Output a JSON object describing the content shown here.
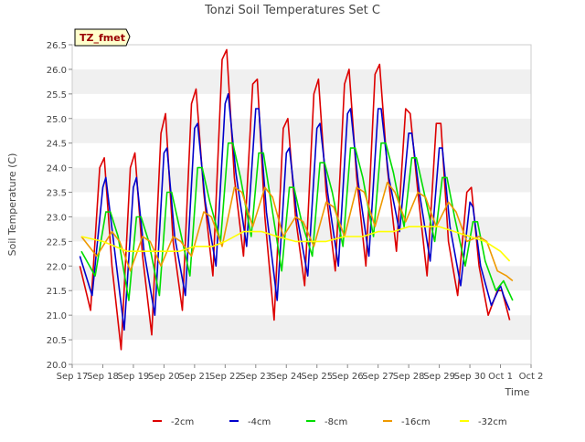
{
  "chart_data": {
    "type": "line",
    "title": "Tonzi Soil Temperatures Set C",
    "xlabel": "Time",
    "ylabel": "Soil Temperature (C)",
    "badge": "TZ_fmet",
    "ylim": [
      20.0,
      26.5
    ],
    "xlim": [
      0,
      15
    ],
    "grid": "alternating horizontal bands",
    "legend_position": "bottom-center",
    "y_ticks": [
      20.0,
      20.5,
      21.0,
      21.5,
      22.0,
      22.5,
      23.0,
      23.5,
      24.0,
      24.5,
      25.0,
      25.5,
      26.0,
      26.5
    ],
    "x_ticks": [
      {
        "x": 0,
        "label": "Sep 17"
      },
      {
        "x": 1,
        "label": "Sep 18"
      },
      {
        "x": 2,
        "label": "Sep 19"
      },
      {
        "x": 3,
        "label": "Sep 20"
      },
      {
        "x": 4,
        "label": "Sep 21"
      },
      {
        "x": 5,
        "label": "Sep 22"
      },
      {
        "x": 6,
        "label": "Sep 23"
      },
      {
        "x": 7,
        "label": "Sep 24"
      },
      {
        "x": 8,
        "label": "Sep 25"
      },
      {
        "x": 9,
        "label": "Sep 26"
      },
      {
        "x": 10,
        "label": "Sep 27"
      },
      {
        "x": 11,
        "label": "Sep 28"
      },
      {
        "x": 12,
        "label": "Sep 29"
      },
      {
        "x": 13,
        "label": "Sep 30"
      },
      {
        "x": 14,
        "label": "Oct 1"
      },
      {
        "x": 15,
        "label": "Oct 2"
      }
    ],
    "series": [
      {
        "name": "-2cm",
        "color": "#dd0000",
        "x": [
          0.25,
          0.6,
          0.9,
          1.05,
          1.3,
          1.6,
          1.9,
          2.05,
          2.3,
          2.6,
          2.9,
          3.05,
          3.3,
          3.6,
          3.9,
          4.05,
          4.3,
          4.6,
          4.9,
          5.05,
          5.3,
          5.6,
          5.9,
          6.05,
          6.3,
          6.6,
          6.9,
          7.05,
          7.3,
          7.6,
          7.9,
          8.05,
          8.3,
          8.6,
          8.9,
          9.05,
          9.3,
          9.6,
          9.9,
          10.05,
          10.3,
          10.6,
          10.9,
          11.05,
          11.3,
          11.6,
          11.9,
          12.05,
          12.3,
          12.6,
          12.9,
          13.05,
          13.3,
          13.6,
          13.9,
          14.05,
          14.3
        ],
        "y": [
          22.0,
          21.1,
          24.0,
          24.2,
          22.0,
          20.3,
          24.0,
          24.3,
          22.2,
          20.6,
          24.7,
          25.1,
          22.5,
          21.1,
          25.3,
          25.6,
          23.5,
          21.8,
          26.2,
          26.4,
          23.8,
          22.2,
          25.7,
          25.8,
          23.0,
          20.9,
          24.8,
          25.0,
          23.0,
          21.6,
          25.5,
          25.8,
          23.5,
          21.9,
          25.7,
          26.0,
          23.8,
          22.0,
          25.9,
          26.1,
          24.0,
          22.3,
          25.2,
          25.1,
          23.5,
          21.8,
          24.9,
          24.9,
          22.5,
          21.4,
          23.5,
          23.6,
          22.0,
          21.0,
          21.5,
          21.5,
          20.9
        ]
      },
      {
        "name": "-4cm",
        "color": "#0000cc",
        "x": [
          0.25,
          0.65,
          1.0,
          1.1,
          1.35,
          1.7,
          2.0,
          2.1,
          2.35,
          2.7,
          3.0,
          3.1,
          3.35,
          3.7,
          4.0,
          4.1,
          4.35,
          4.7,
          5.0,
          5.1,
          5.35,
          5.7,
          6.0,
          6.1,
          6.35,
          6.7,
          7.0,
          7.1,
          7.35,
          7.7,
          8.0,
          8.1,
          8.35,
          8.7,
          9.0,
          9.1,
          9.35,
          9.7,
          10.0,
          10.1,
          10.35,
          10.7,
          11.0,
          11.1,
          11.35,
          11.7,
          12.0,
          12.1,
          12.35,
          12.7,
          13.0,
          13.1,
          13.35,
          13.7,
          14.0,
          14.1,
          14.3
        ],
        "y": [
          22.2,
          21.4,
          23.6,
          23.8,
          22.5,
          20.7,
          23.6,
          23.8,
          22.3,
          21.0,
          24.3,
          24.4,
          22.6,
          21.4,
          24.8,
          24.9,
          23.3,
          22.0,
          25.3,
          25.5,
          23.9,
          22.4,
          25.2,
          25.2,
          23.1,
          21.3,
          24.3,
          24.4,
          23.0,
          21.8,
          24.8,
          24.9,
          23.5,
          22.0,
          25.1,
          25.2,
          23.7,
          22.2,
          25.2,
          25.2,
          23.8,
          22.7,
          24.7,
          24.7,
          23.5,
          22.1,
          24.4,
          24.4,
          22.8,
          21.6,
          23.3,
          23.2,
          22.0,
          21.2,
          21.6,
          21.4,
          21.1
        ]
      },
      {
        "name": "-8cm",
        "color": "#00dd00",
        "x": [
          0.3,
          0.75,
          1.1,
          1.25,
          1.5,
          1.85,
          2.1,
          2.25,
          2.5,
          2.85,
          3.1,
          3.25,
          3.5,
          3.85,
          4.1,
          4.25,
          4.5,
          4.85,
          5.1,
          5.25,
          5.5,
          5.85,
          6.1,
          6.25,
          6.5,
          6.85,
          7.1,
          7.25,
          7.5,
          7.85,
          8.1,
          8.25,
          8.5,
          8.85,
          9.1,
          9.25,
          9.5,
          9.85,
          10.1,
          10.25,
          10.5,
          10.85,
          11.1,
          11.25,
          11.5,
          11.85,
          12.1,
          12.25,
          12.5,
          12.85,
          13.1,
          13.25,
          13.5,
          13.85,
          14.1,
          14.4
        ],
        "y": [
          22.3,
          21.8,
          23.1,
          23.1,
          22.6,
          21.3,
          23.0,
          23.0,
          22.5,
          21.4,
          23.5,
          23.5,
          22.8,
          21.8,
          24.0,
          24.0,
          23.3,
          22.5,
          24.5,
          24.5,
          23.8,
          22.6,
          24.3,
          24.3,
          23.3,
          21.9,
          23.6,
          23.6,
          22.9,
          22.2,
          24.1,
          24.1,
          23.5,
          22.4,
          24.4,
          24.4,
          23.8,
          22.6,
          24.5,
          24.5,
          23.9,
          22.8,
          24.2,
          24.2,
          23.5,
          22.5,
          23.8,
          23.8,
          23.0,
          22.0,
          22.9,
          22.9,
          22.1,
          21.5,
          21.7,
          21.3
        ]
      },
      {
        "name": "-16cm",
        "color": "#ee9900",
        "x": [
          0.3,
          0.8,
          1.3,
          1.55,
          1.9,
          2.3,
          2.55,
          2.9,
          3.3,
          3.55,
          3.9,
          4.3,
          4.55,
          4.9,
          5.3,
          5.55,
          5.9,
          6.3,
          6.55,
          6.9,
          7.3,
          7.55,
          7.9,
          8.3,
          8.55,
          8.9,
          9.3,
          9.55,
          9.9,
          10.3,
          10.55,
          10.9,
          11.3,
          11.55,
          11.9,
          12.3,
          12.55,
          12.9,
          13.3,
          13.55,
          13.9,
          14.2,
          14.4
        ],
        "y": [
          22.6,
          22.2,
          22.7,
          22.5,
          21.9,
          22.6,
          22.5,
          22.0,
          22.6,
          22.5,
          22.2,
          23.1,
          23.0,
          22.4,
          23.6,
          23.5,
          22.8,
          23.6,
          23.4,
          22.6,
          23.0,
          22.9,
          22.4,
          23.3,
          23.2,
          22.6,
          23.6,
          23.5,
          22.8,
          23.7,
          23.5,
          22.9,
          23.5,
          23.4,
          22.8,
          23.3,
          23.1,
          22.5,
          22.6,
          22.5,
          21.9,
          21.8,
          21.7
        ]
      },
      {
        "name": "-32cm",
        "color": "#ffff00",
        "x": [
          0.3,
          1.0,
          1.8,
          2.5,
          3.0,
          3.5,
          4.0,
          4.6,
          5.0,
          5.6,
          6.2,
          6.7,
          7.3,
          7.8,
          8.3,
          8.9,
          9.5,
          10.0,
          10.5,
          11.0,
          11.5,
          12.0,
          12.5,
          13.0,
          13.5,
          14.0,
          14.3
        ],
        "y": [
          22.6,
          22.5,
          22.3,
          22.3,
          22.3,
          22.3,
          22.4,
          22.4,
          22.5,
          22.7,
          22.7,
          22.6,
          22.5,
          22.5,
          22.5,
          22.6,
          22.6,
          22.7,
          22.7,
          22.8,
          22.8,
          22.8,
          22.7,
          22.6,
          22.5,
          22.3,
          22.1
        ]
      }
    ]
  }
}
